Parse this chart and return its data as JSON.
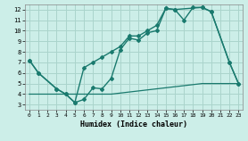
{
  "xlabel": "Humidex (Indice chaleur)",
  "bg_color": "#cceee8",
  "line_color": "#1a7a6e",
  "grid_color": "#aad4cc",
  "xlim": [
    -0.5,
    23.5
  ],
  "ylim": [
    2.5,
    12.5
  ],
  "xticks": [
    0,
    1,
    2,
    3,
    4,
    5,
    6,
    7,
    8,
    9,
    10,
    11,
    12,
    13,
    14,
    15,
    16,
    17,
    18,
    19,
    20,
    21,
    22,
    23
  ],
  "yticks": [
    3,
    4,
    5,
    6,
    7,
    8,
    9,
    10,
    11,
    12
  ],
  "series1_x": [
    0,
    1,
    3,
    4,
    5,
    6,
    7,
    8,
    9,
    10,
    11,
    12,
    13,
    14,
    15,
    16,
    17,
    18,
    19,
    20,
    22,
    23
  ],
  "series1_y": [
    7.2,
    6.0,
    4.5,
    4.0,
    3.2,
    3.5,
    4.6,
    4.5,
    5.5,
    8.2,
    9.3,
    9.1,
    9.8,
    10.0,
    12.1,
    12.0,
    11.0,
    12.2,
    12.2,
    11.8,
    7.0,
    5.0
  ],
  "series2_x": [
    0,
    1,
    3,
    4,
    5,
    6,
    7,
    8,
    9,
    10,
    11,
    12,
    13,
    14,
    15,
    16,
    19,
    20,
    22,
    23
  ],
  "series2_y": [
    7.2,
    6.0,
    4.5,
    4.0,
    3.2,
    6.5,
    7.0,
    7.5,
    8.0,
    8.5,
    9.5,
    9.5,
    10.0,
    10.5,
    12.1,
    12.0,
    12.2,
    11.8,
    7.0,
    5.0
  ],
  "series3_x": [
    0,
    1,
    2,
    3,
    4,
    5,
    6,
    7,
    8,
    9,
    10,
    11,
    12,
    13,
    14,
    15,
    16,
    17,
    18,
    19,
    20,
    21,
    22,
    23
  ],
  "series3_y": [
    4.0,
    4.0,
    4.0,
    4.0,
    4.0,
    4.0,
    4.0,
    4.0,
    4.0,
    4.0,
    4.1,
    4.2,
    4.3,
    4.4,
    4.5,
    4.6,
    4.7,
    4.8,
    4.9,
    5.0,
    5.0,
    5.0,
    5.0,
    5.0
  ]
}
